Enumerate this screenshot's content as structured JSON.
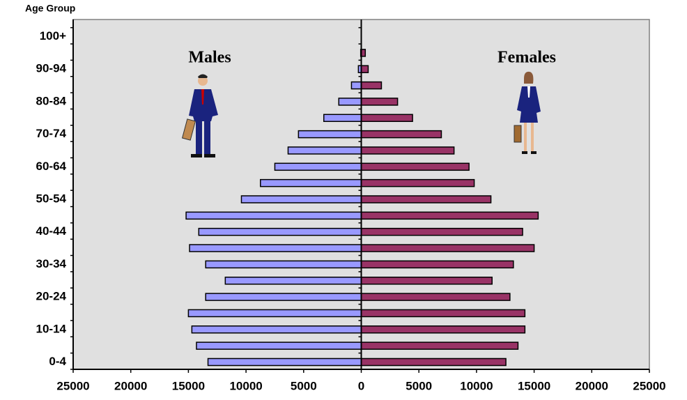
{
  "chart_data": {
    "type": "bar",
    "orientation": "horizontal",
    "y_label": "Age Group",
    "categories": [
      "0-4",
      null,
      "10-14",
      null,
      "20-24",
      null,
      "30-34",
      null,
      "40-44",
      null,
      "50-54",
      null,
      "60-64",
      null,
      "70-74",
      null,
      "80-84",
      null,
      "90-94",
      null,
      "100+"
    ],
    "series": [
      {
        "name": "Males",
        "color": "#9999ff",
        "values": [
          -13300,
          -14300,
          -14700,
          -15000,
          -13500,
          -11800,
          -13500,
          -14900,
          -14100,
          -15200,
          -10400,
          -8750,
          -7500,
          -6350,
          -5450,
          -3250,
          -1950,
          -850,
          -250,
          -50,
          0
        ]
      },
      {
        "name": "Females",
        "color": "#993366",
        "values": [
          12550,
          13600,
          14200,
          14200,
          12900,
          11350,
          13200,
          15000,
          14000,
          15350,
          11250,
          9800,
          9350,
          8050,
          6950,
          4450,
          3150,
          1750,
          600,
          350,
          0
        ]
      }
    ],
    "xlim": [
      -25000,
      25000
    ],
    "xticks": [
      {
        "value": -25000,
        "label": "25000"
      },
      {
        "value": -20000,
        "label": "20000"
      },
      {
        "value": -15000,
        "label": "15000"
      },
      {
        "value": -10000,
        "label": "10000"
      },
      {
        "value": -5000,
        "label": "5000"
      },
      0,
      5000,
      10000,
      15000,
      20000,
      25000
    ]
  }
}
